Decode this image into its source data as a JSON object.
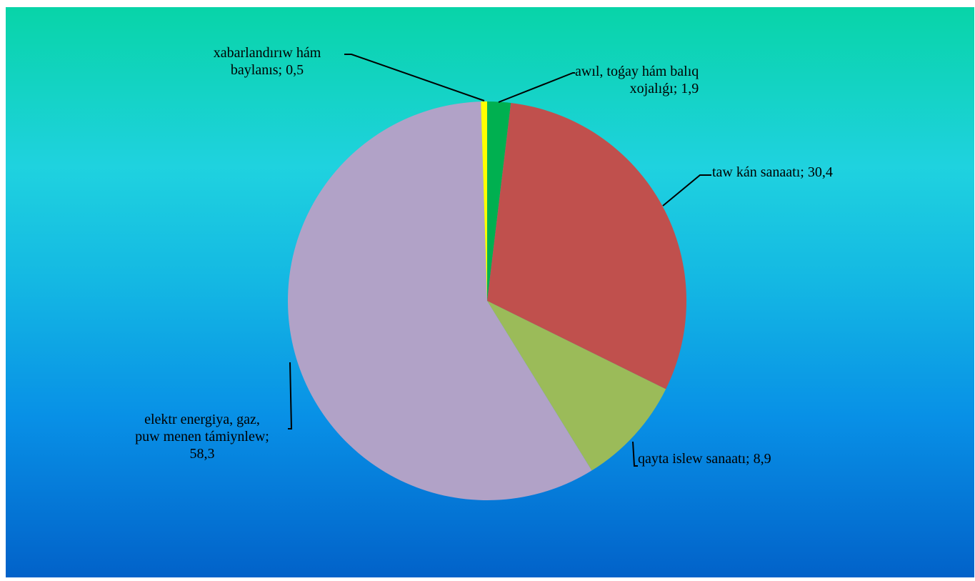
{
  "chart_data": {
    "type": "pie",
    "title": "",
    "start_angle_deg": 0,
    "direction": "clockwise",
    "legend": "none",
    "slices": [
      {
        "label_lines": [
          "awıl, toǵay hám balıq",
          "xojalıǵı; 1,9"
        ],
        "label": "awıl, toǵay hám balıq xojalıǵı",
        "value": 1.9,
        "color": "#00b050"
      },
      {
        "label_lines": [
          "taw kán sanaatı; 30,4"
        ],
        "label": "taw kán sanaatı",
        "value": 30.4,
        "color": "#c0504d"
      },
      {
        "label_lines": [
          "qayta islew sanaatı; 8,9"
        ],
        "label": "qayta islew sanaatı",
        "value": 8.9,
        "color": "#9bbb59"
      },
      {
        "label_lines": [
          "elektr energiya, gaz,",
          "puw menen támiynlew;",
          "58,3"
        ],
        "label": "elektr energiya, gaz, puw menen támiynlew",
        "value": 58.3,
        "color": "#b1a2c7"
      },
      {
        "label_lines": [
          "xabarlandırıw hám",
          "baylanıs; 0,5"
        ],
        "label": "xabarlandırıw hám baylanıs",
        "value": 0.5,
        "color": "#ffff00"
      }
    ]
  }
}
